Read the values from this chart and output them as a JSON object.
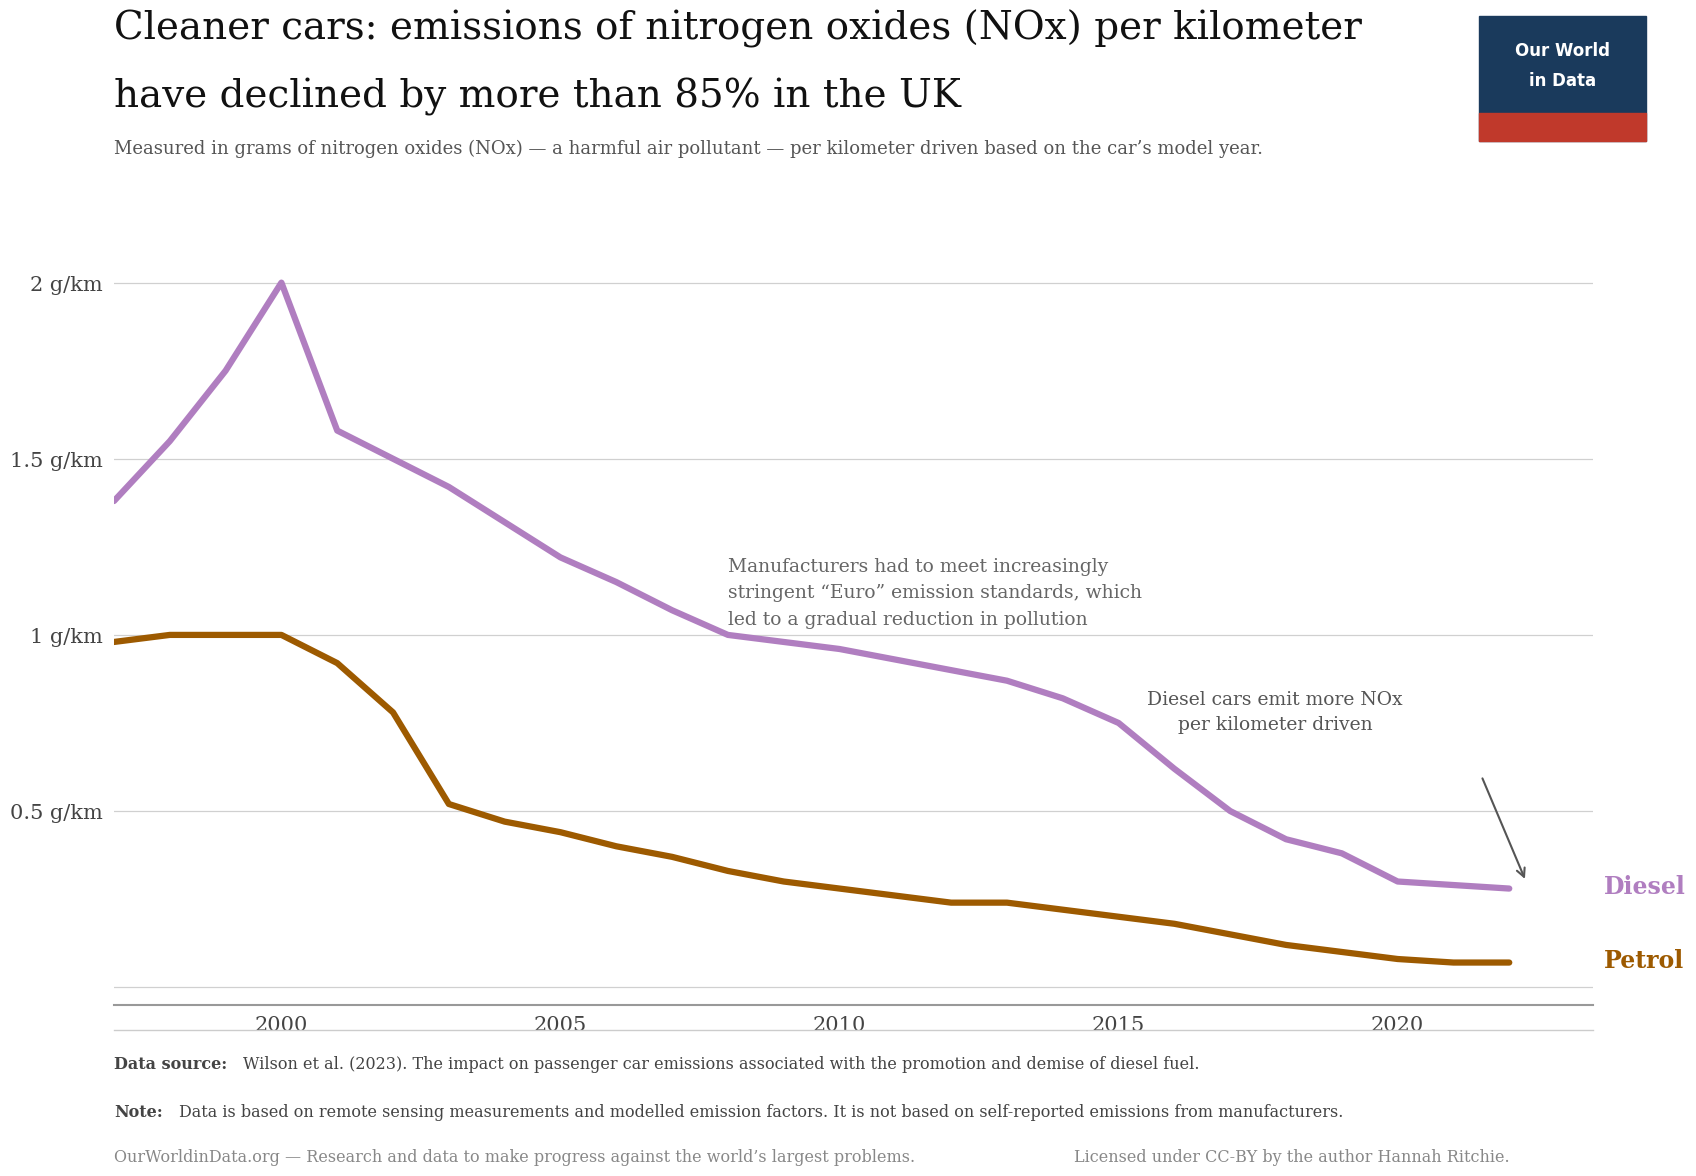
{
  "title_line1": "Cleaner cars: emissions of nitrogen oxides (NOx) per kilometer",
  "title_line2": "have declined by more than 85% in the UK",
  "subtitle": "Measured in grams of nitrogen oxides (NOx) — a harmful air pollutant — per kilometer driven based on the car’s model year.",
  "diesel_years": [
    1997,
    1998,
    1999,
    2000,
    2001,
    2002,
    2003,
    2004,
    2005,
    2006,
    2007,
    2008,
    2009,
    2010,
    2011,
    2012,
    2013,
    2014,
    2015,
    2016,
    2017,
    2018,
    2019,
    2020,
    2021,
    2022
  ],
  "diesel_values": [
    1.38,
    1.55,
    1.75,
    2.0,
    1.58,
    1.5,
    1.42,
    1.32,
    1.22,
    1.15,
    1.07,
    1.0,
    0.98,
    0.96,
    0.93,
    0.9,
    0.87,
    0.82,
    0.75,
    0.62,
    0.5,
    0.42,
    0.38,
    0.3,
    0.29,
    0.28
  ],
  "petrol_years": [
    1997,
    1998,
    1999,
    2000,
    2001,
    2002,
    2003,
    2004,
    2005,
    2006,
    2007,
    2008,
    2009,
    2010,
    2011,
    2012,
    2013,
    2014,
    2015,
    2016,
    2017,
    2018,
    2019,
    2020,
    2021,
    2022
  ],
  "petrol_values": [
    0.98,
    1.0,
    1.0,
    1.0,
    0.92,
    0.78,
    0.52,
    0.47,
    0.44,
    0.4,
    0.37,
    0.33,
    0.3,
    0.28,
    0.26,
    0.24,
    0.24,
    0.22,
    0.2,
    0.18,
    0.15,
    0.12,
    0.1,
    0.08,
    0.07,
    0.07
  ],
  "diesel_color": "#b07ec0",
  "petrol_color": "#9d5a00",
  "line_width": 4.5,
  "yticks": [
    0.0,
    0.5,
    1.0,
    1.5,
    2.0
  ],
  "ytick_labels": [
    "",
    "0.5 g/km",
    "1 g/km",
    "1.5 g/km",
    "2 g/km"
  ],
  "xticks": [
    2000,
    2005,
    2010,
    2015,
    2020
  ],
  "xlim": [
    1997,
    2023.5
  ],
  "ylim": [
    -0.05,
    2.25
  ],
  "background_color": "#ffffff",
  "owid_box_color": "#1a3a5c",
  "owid_box_red": "#c0392b",
  "source_bold": "Data source:",
  "source_rest": " Wilson et al. (2023). The impact on passenger car emissions associated with the promotion and demise of diesel fuel.",
  "note_bold": "Note:",
  "note_rest": " Data is based on remote sensing measurements and modelled emission factors. It is not based on self-reported emissions from manufacturers.",
  "owid_text": "OurWorldinData.org — Research and data to make progress against the world’s largest problems.",
  "license_text": "Licensed under CC-BY by the author Hannah Ritchie."
}
